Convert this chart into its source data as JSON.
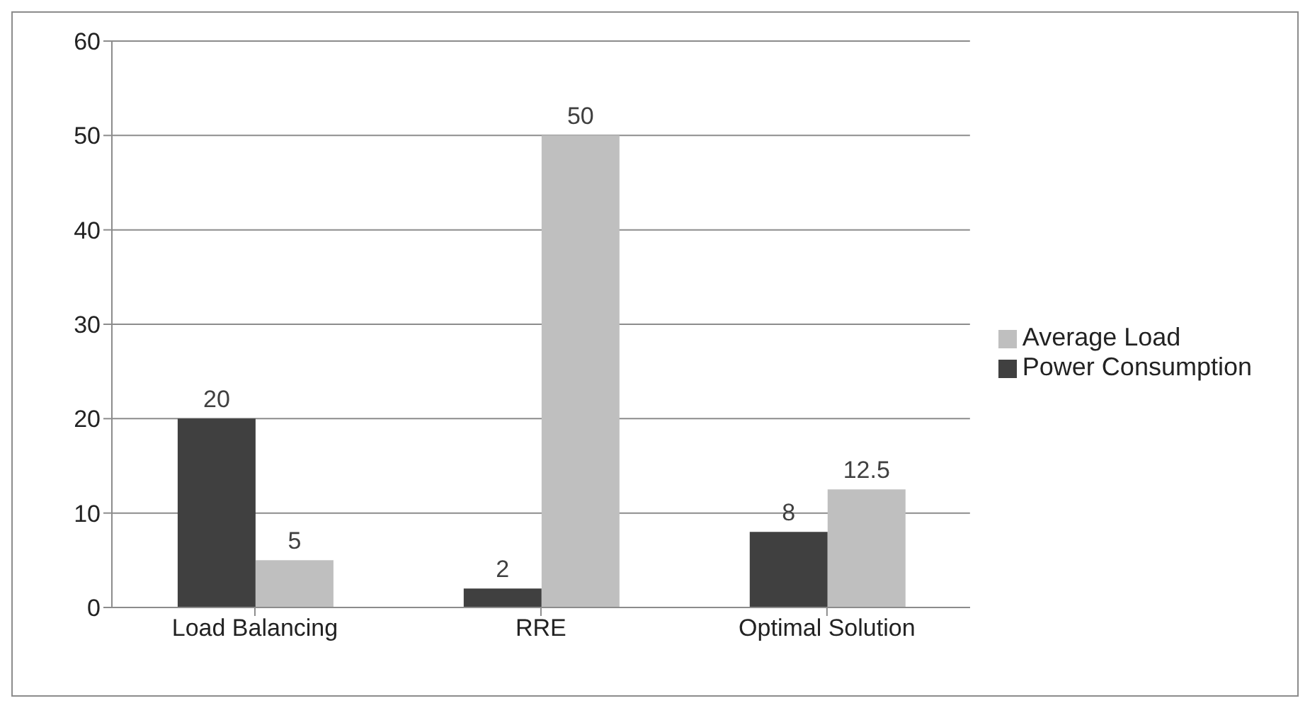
{
  "chart_data": {
    "type": "bar",
    "categories": [
      "Load Balancing",
      "RRE",
      "Optimal Solution"
    ],
    "series": [
      {
        "name": "Power Consumption",
        "color": "#404040",
        "values": [
          20,
          2,
          8
        ]
      },
      {
        "name": "Average Load",
        "color": "#bfbfbf",
        "values": [
          5,
          50,
          12.5
        ]
      }
    ],
    "ylim": [
      0,
      60
    ],
    "yticks": [
      0,
      10,
      20,
      30,
      40,
      50,
      60
    ],
    "grid": "y",
    "legend": "right",
    "data_labels": true
  }
}
